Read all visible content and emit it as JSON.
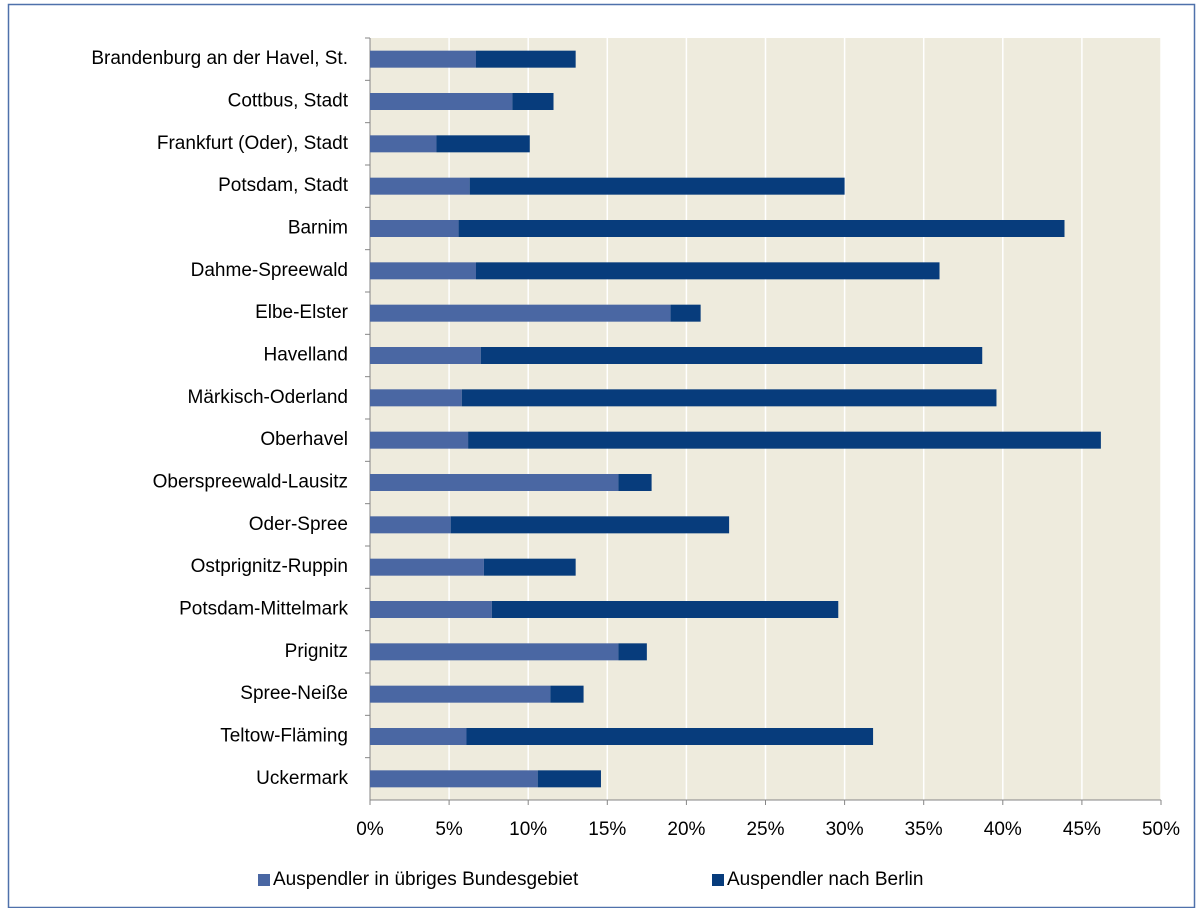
{
  "chart_data": {
    "type": "stacked-bar-horizontal",
    "categories": [
      "Brandenburg an der Havel, St.",
      "Cottbus, Stadt",
      "Frankfurt (Oder), Stadt",
      "Potsdam, Stadt",
      "Barnim",
      "Dahme-Spreewald",
      "Elbe-Elster",
      "Havelland",
      "Märkisch-Oderland",
      "Oberhavel",
      "Oberspreewald-Lausitz",
      "Oder-Spree",
      "Ostprignitz-Ruppin",
      "Potsdam-Mittelmark",
      "Prignitz",
      "Spree-Neiße",
      "Teltow-Fläming",
      "Uckermark"
    ],
    "series": [
      {
        "name": "Auspendler in übriges Bundesgebiet",
        "color": "#4a67a3",
        "values": [
          6.7,
          9.0,
          4.2,
          6.3,
          5.6,
          6.7,
          19.0,
          7.0,
          5.8,
          6.2,
          15.7,
          5.1,
          7.2,
          7.7,
          15.7,
          11.4,
          6.1,
          10.6
        ]
      },
      {
        "name": "Auspendler nach Berlin",
        "color": "#073c7c",
        "values": [
          6.3,
          2.6,
          5.9,
          23.7,
          38.3,
          29.3,
          1.9,
          31.7,
          33.8,
          40.0,
          2.1,
          17.6,
          5.8,
          21.9,
          1.8,
          2.1,
          25.7,
          4.0
        ]
      }
    ],
    "xlim": [
      0,
      50
    ],
    "xticks": [
      {
        "value": 0,
        "label": "0%"
      },
      {
        "value": 5,
        "label": "5%"
      },
      {
        "value": 10,
        "label": "10%"
      },
      {
        "value": 15,
        "label": "15%"
      },
      {
        "value": 20,
        "label": "20%"
      },
      {
        "value": 25,
        "label": "25%"
      },
      {
        "value": 30,
        "label": "30%"
      },
      {
        "value": 35,
        "label": "35%"
      },
      {
        "value": 40,
        "label": "40%"
      },
      {
        "value": 45,
        "label": "45%"
      },
      {
        "value": 50,
        "label": "50%"
      }
    ],
    "grid": true,
    "legend": "bottom"
  }
}
